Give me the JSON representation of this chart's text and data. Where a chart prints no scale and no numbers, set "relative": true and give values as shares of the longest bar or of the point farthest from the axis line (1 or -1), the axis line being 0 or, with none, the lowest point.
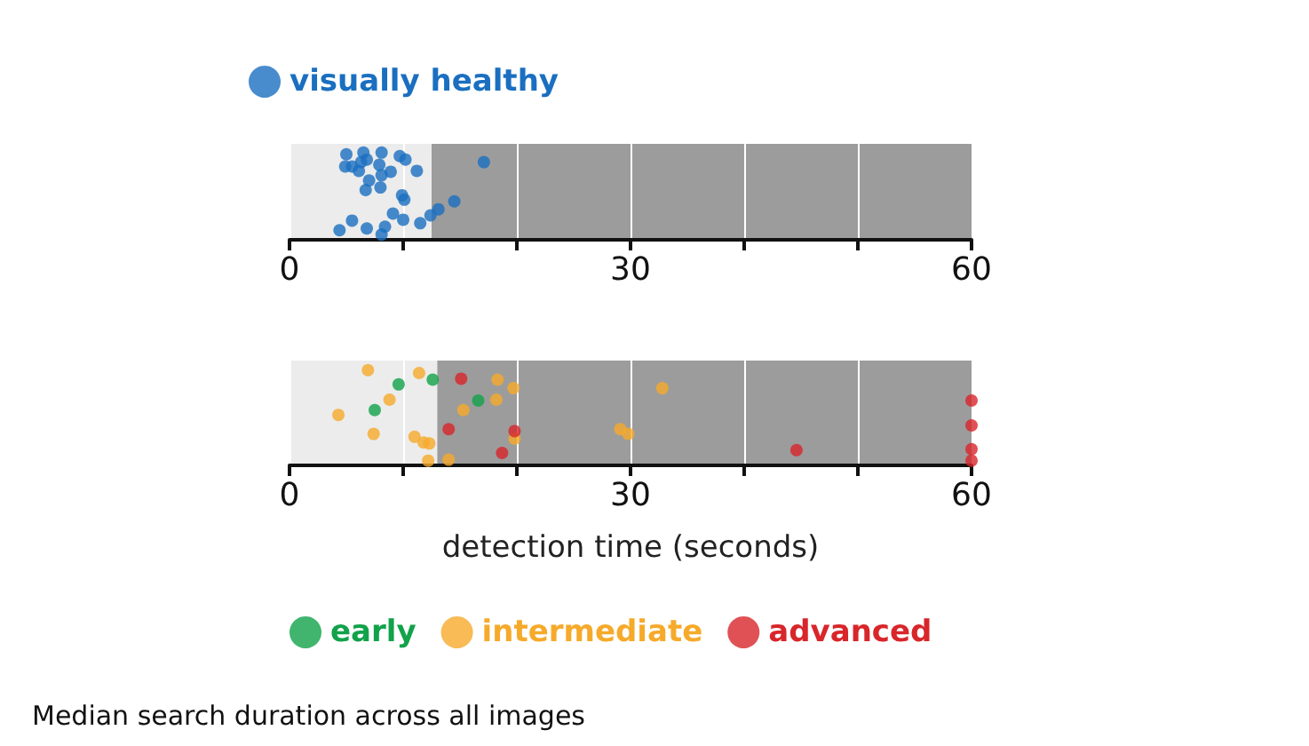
{
  "chart_data": [
    {
      "type": "scatter",
      "relative": true,
      "xlim": [
        0,
        60
      ],
      "xticks": [
        0,
        {
          "value": 10,
          "label": null
        },
        {
          "value": 20,
          "label": null
        },
        30,
        {
          "value": 40,
          "label": null
        },
        {
          "value": 50,
          "label": null
        },
        60
      ],
      "grid": "x",
      "legend": "top left",
      "marker": "circle",
      "tick_labels": "x",
      "bands": [
        {
          "axis": "x",
          "from": 0,
          "to": 12.5,
          "color": "#ececec"
        },
        {
          "axis": "x",
          "from": 12.5,
          "to": 60,
          "color": "#9c9c9c"
        }
      ],
      "series": [
        {
          "name": "visually healthy",
          "color": "#1a6fc0",
          "x": [
            5.0,
            6.5,
            8.1,
            9.7,
            10.2,
            4.9,
            5.5,
            6.3,
            6.8,
            7.9,
            8.9,
            11.2,
            6.1,
            7.0,
            8.1,
            6.7,
            8.0,
            9.9,
            10.1,
            17.1,
            14.5,
            13.1,
            12.4,
            11.5,
            9.1,
            10.0,
            4.4,
            5.5,
            6.8,
            8.4,
            8.1
          ],
          "values": [
            0.98,
            1.0,
            1.0,
            0.96,
            0.92,
            0.84,
            0.84,
            0.89,
            0.92,
            0.86,
            0.78,
            0.79,
            0.79,
            0.68,
            0.74,
            0.57,
            0.6,
            0.51,
            0.46,
            0.89,
            0.44,
            0.35,
            0.28,
            0.19,
            0.3,
            0.23,
            0.11,
            0.22,
            0.13,
            0.15,
            0.06
          ]
        }
      ]
    },
    {
      "type": "scatter",
      "relative": true,
      "xlim": [
        0,
        60
      ],
      "xticks": [
        0,
        {
          "value": 10,
          "label": null
        },
        {
          "value": 20,
          "label": null
        },
        30,
        {
          "value": 40,
          "label": null
        },
        {
          "value": 50,
          "label": null
        },
        60
      ],
      "grid": "x",
      "legend": "bottom",
      "marker": "circle",
      "tick_labels": "x",
      "xlabel": "detection time (seconds)",
      "annotations": [
        "Median search duration across all images"
      ],
      "bands": [
        {
          "axis": "x",
          "from": 0,
          "to": 13,
          "color": "#ececec"
        },
        {
          "axis": "x",
          "from": 13,
          "to": 60,
          "color": "#9c9c9c"
        }
      ],
      "series": [
        {
          "name": "early",
          "color": "#12a24a",
          "x": [
            9.6,
            12.6,
            16.6,
            7.5
          ],
          "values": [
            0.85,
            0.9,
            0.68,
            0.58
          ]
        },
        {
          "name": "intermediate",
          "color": "#f6aa2a",
          "x": [
            6.9,
            11.4,
            18.3,
            19.7,
            32.8,
            8.8,
            18.2,
            15.3,
            4.3,
            7.4,
            11.0,
            11.8,
            12.3,
            19.8,
            29.1,
            29.8,
            12.2,
            14.0
          ],
          "values": [
            1.0,
            0.97,
            0.9,
            0.81,
            0.81,
            0.69,
            0.69,
            0.58,
            0.53,
            0.33,
            0.3,
            0.24,
            0.23,
            0.28,
            0.38,
            0.33,
            0.05,
            0.06
          ]
        },
        {
          "name": "advanced",
          "color": "#d8262a",
          "x": [
            15.1,
            14.0,
            19.8,
            18.7,
            44.6,
            60,
            60,
            60,
            60
          ],
          "values": [
            0.91,
            0.38,
            0.36,
            0.13,
            0.16,
            0.68,
            0.42,
            0.17,
            0.05
          ]
        }
      ]
    }
  ]
}
